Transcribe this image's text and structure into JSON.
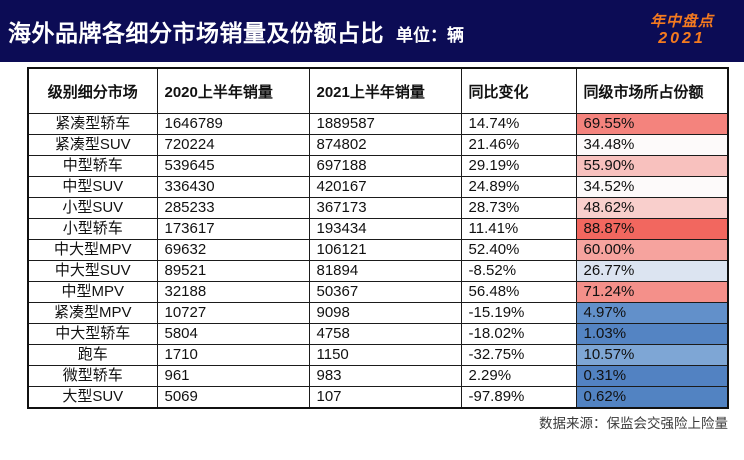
{
  "banner": {
    "title": "海外品牌各细分市场销量及份额占比",
    "unit_label": "单位：辆",
    "badge_line1": "年中盘点",
    "badge_line2": "2021",
    "bg_color": "#0C0C55",
    "badge_color": "#F47A1F"
  },
  "footer": {
    "source": "数据来源：保监会交强险上险量"
  },
  "chart_data": {
    "type": "table",
    "title": "海外品牌各细分市场销量及份额占比",
    "unit": "辆",
    "columns": [
      "级别细分市场",
      "2020上半年销量",
      "2021上半年销量",
      "同比变化",
      "同级市场所占份额"
    ],
    "share_color_scale": {
      "low_color": "#5282C2",
      "mid_color": "#FDFBFB",
      "high_color": "#F2675F"
    },
    "rows": [
      {
        "segment": "紧凑型轿车",
        "sales_2020": "1646789",
        "sales_2021": "1889587",
        "yoy_change": "14.74%",
        "share": "69.55%",
        "share_bg": "#F4837D"
      },
      {
        "segment": "紧凑型SUV",
        "sales_2020": "720224",
        "sales_2021": "874802",
        "yoy_change": "21.46%",
        "share": "34.48%",
        "share_bg": "#FDFAFA"
      },
      {
        "segment": "中型轿车",
        "sales_2020": "539645",
        "sales_2021": "697188",
        "yoy_change": "29.19%",
        "share": "55.90%",
        "share_bg": "#F8C1BE"
      },
      {
        "segment": "中型SUV",
        "sales_2020": "336430",
        "sales_2021": "420167",
        "yoy_change": "24.89%",
        "share": "34.52%",
        "share_bg": "#FDFAFA"
      },
      {
        "segment": "小型SUV",
        "sales_2020": "285233",
        "sales_2021": "367173",
        "yoy_change": "28.73%",
        "share": "48.62%",
        "share_bg": "#F9CFCC"
      },
      {
        "segment": "小型轿车",
        "sales_2020": "173617",
        "sales_2021": "193434",
        "yoy_change": "11.41%",
        "share": "88.87%",
        "share_bg": "#F2675F"
      },
      {
        "segment": "中大型MPV",
        "sales_2020": "69632",
        "sales_2021": "106121",
        "yoy_change": "52.40%",
        "share": "60.00%",
        "share_bg": "#F6A39E"
      },
      {
        "segment": "中大型SUV",
        "sales_2020": "89521",
        "sales_2021": "81894",
        "yoy_change": "-8.52%",
        "share": "26.77%",
        "share_bg": "#DCE4F1"
      },
      {
        "segment": "中型MPV",
        "sales_2020": "32188",
        "sales_2021": "50367",
        "yoy_change": "56.48%",
        "share": "71.24%",
        "share_bg": "#F4908A"
      },
      {
        "segment": "紧凑型MPV",
        "sales_2020": "10727",
        "sales_2021": "9098",
        "yoy_change": "-15.19%",
        "share": "4.97%",
        "share_bg": "#6290CA"
      },
      {
        "segment": "中大型轿车",
        "sales_2020": "5804",
        "sales_2021": "4758",
        "yoy_change": "-18.02%",
        "share": "1.03%",
        "share_bg": "#5484C3"
      },
      {
        "segment": "跑车",
        "sales_2020": "1710",
        "sales_2021": "1150",
        "yoy_change": "-32.75%",
        "share": "10.57%",
        "share_bg": "#7EA6D5"
      },
      {
        "segment": "微型轿车",
        "sales_2020": "961",
        "sales_2021": "983",
        "yoy_change": "2.29%",
        "share": "0.31%",
        "share_bg": "#5282C2"
      },
      {
        "segment": "大型SUV",
        "sales_2020": "5069",
        "sales_2021": "107",
        "yoy_change": "-97.89%",
        "share": "0.62%",
        "share_bg": "#5283C2"
      }
    ]
  }
}
